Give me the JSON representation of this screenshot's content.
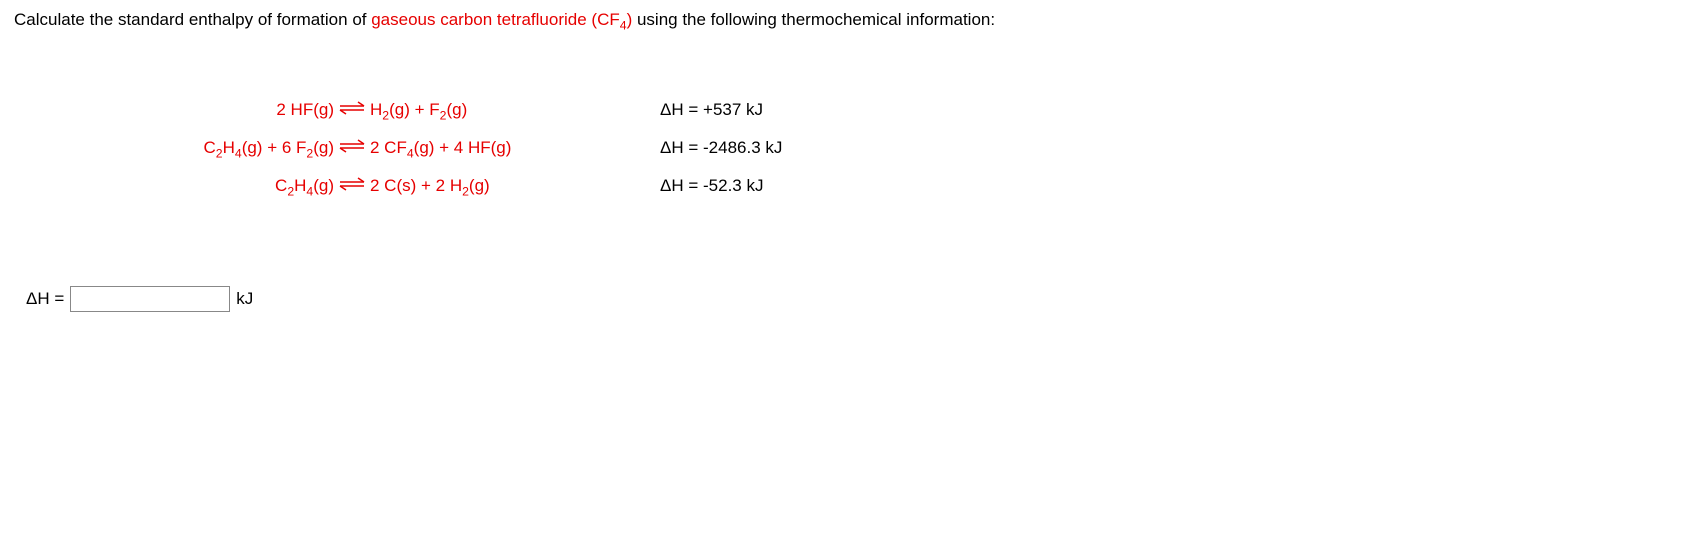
{
  "question": {
    "prefix": "Calculate the standard enthalpy of formation of ",
    "compound_html": "gaseous carbon tetrafluoride (CF<sub>4</sub>)",
    "suffix": " using the following thermochemical information:"
  },
  "equations": [
    {
      "lhs_html": "2 HF(g)",
      "rhs_html": "H<sub>2</sub>(g) + F<sub>2</sub>(g)",
      "dh_label": "ΔH = ",
      "dh_value": "+537 kJ",
      "dh_color": "#000",
      "reactant_color": "#e60000"
    },
    {
      "lhs_html": "C<sub>2</sub>H<sub>4</sub>(g) + 6 F<sub>2</sub>(g)",
      "rhs_html": "2 CF<sub>4</sub>(g) + 4 HF(g)",
      "dh_label": "ΔH = ",
      "dh_value": "-2486.3 kJ",
      "dh_color": "#000",
      "reactant_color": "#e60000"
    },
    {
      "lhs_html": "C<sub>2</sub>H<sub>4</sub>(g)",
      "rhs_html": "2 C(s) + 2 H<sub>2</sub>(g)",
      "dh_label": "ΔH = ",
      "dh_value": "-52.3 kJ",
      "dh_color": "#000",
      "reactant_color": "#e60000"
    }
  ],
  "answer": {
    "label": "ΔH = ",
    "unit": "kJ",
    "value": ""
  },
  "styling": {
    "red": "#e60000",
    "text": "#000000",
    "font_family": "Arial",
    "font_size_pt": 13,
    "arrow_color": "#e60000"
  }
}
